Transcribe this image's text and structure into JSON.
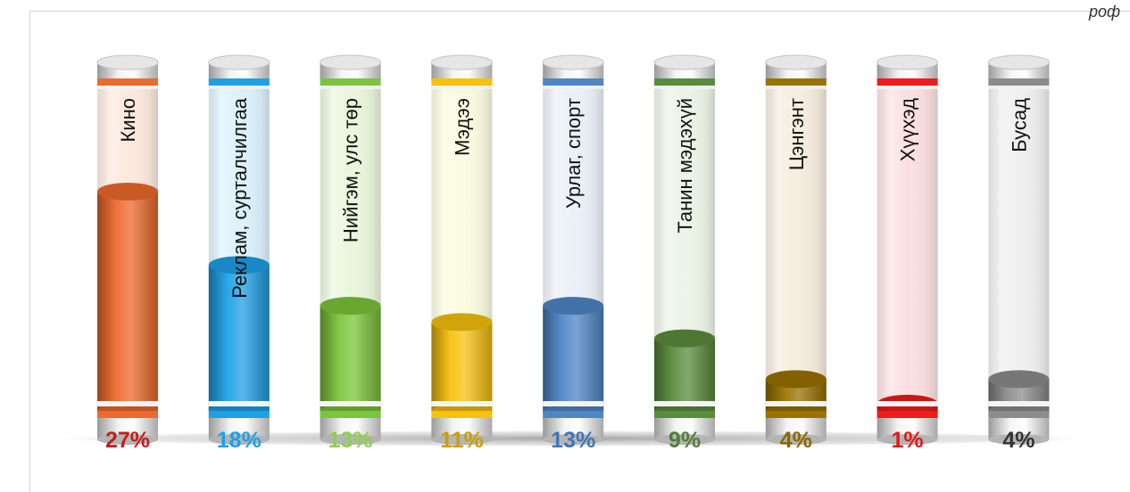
{
  "corner_text": "роф",
  "chart_data": {
    "type": "bar",
    "title": "",
    "xlabel": "",
    "ylabel": "",
    "ylim": [
      0,
      30
    ],
    "categories": [
      "Кино",
      "Реклам, сурталчилгаа",
      "Нийгэм, улс төр",
      "Мэдээ",
      "Урлаг, спорт",
      "Танин мэдэхүй",
      "Цэнгэнт",
      "Хүүхэд",
      "Бусад"
    ],
    "values": [
      27,
      18,
      13,
      11,
      13,
      9,
      4,
      1,
      4
    ],
    "value_labels": [
      "27%",
      "18%",
      "13%",
      "11%",
      "13%",
      "9%",
      "4%",
      "1%",
      "4%"
    ],
    "colors": [
      "#ee6a2c",
      "#1ea0e6",
      "#7cc43a",
      "#f7c10e",
      "#4f86c6",
      "#5a8c3c",
      "#9a7200",
      "#ee1c1c",
      "#8c8c8c"
    ],
    "label_colors": [
      "#c01f1f",
      "#1ea0e6",
      "#8cd04c",
      "#c9a000",
      "#3f76b6",
      "#4f7e36",
      "#8a6600",
      "#e01818",
      "#333333"
    ],
    "tube_tints": [
      "#fbe4d8",
      "#d6eefb",
      "#e6f4d6",
      "#fafadc",
      "#e6edf6",
      "#e8f2e2",
      "#f3ead8",
      "#fbdada",
      "#ececec"
    ]
  }
}
